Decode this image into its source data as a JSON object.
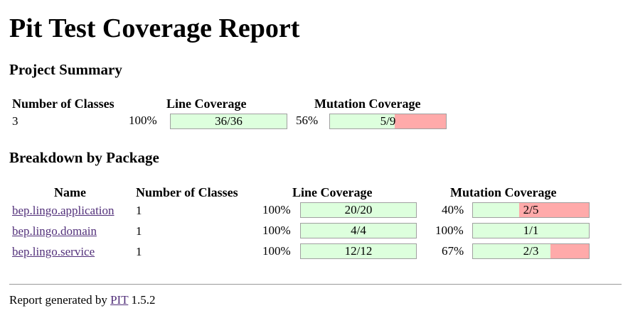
{
  "title": "Pit Test Coverage Report",
  "colors": {
    "covered": "#ddffdd",
    "uncovered": "#ffaaaa",
    "link": "#52307a"
  },
  "project_summary": {
    "heading": "Project Summary",
    "headers": {
      "classes": "Number of Classes",
      "line": "Line Coverage",
      "mutation": "Mutation Coverage"
    },
    "classes": "3",
    "line": {
      "percent": "100%",
      "label": "36/36",
      "covered": 36,
      "total": 36
    },
    "mutation": {
      "percent": "56%",
      "label": "5/9",
      "covered": 5,
      "total": 9
    }
  },
  "breakdown": {
    "heading": "Breakdown by Package",
    "headers": {
      "name": "Name",
      "classes": "Number of Classes",
      "line": "Line Coverage",
      "mutation": "Mutation Coverage"
    },
    "rows": [
      {
        "name": "bep.lingo.application",
        "classes": "1",
        "line": {
          "percent": "100%",
          "label": "20/20",
          "covered": 20,
          "total": 20
        },
        "mutation": {
          "percent": "40%",
          "label": "2/5",
          "covered": 2,
          "total": 5
        }
      },
      {
        "name": "bep.lingo.domain",
        "classes": "1",
        "line": {
          "percent": "100%",
          "label": "4/4",
          "covered": 4,
          "total": 4
        },
        "mutation": {
          "percent": "100%",
          "label": "1/1",
          "covered": 1,
          "total": 1
        }
      },
      {
        "name": "bep.lingo.service",
        "classes": "1",
        "line": {
          "percent": "100%",
          "label": "12/12",
          "covered": 12,
          "total": 12
        },
        "mutation": {
          "percent": "67%",
          "label": "2/3",
          "covered": 2,
          "total": 3
        }
      }
    ]
  },
  "footer": {
    "prefix": "Report generated by",
    "link": "PIT",
    "version": "1.5.2"
  }
}
